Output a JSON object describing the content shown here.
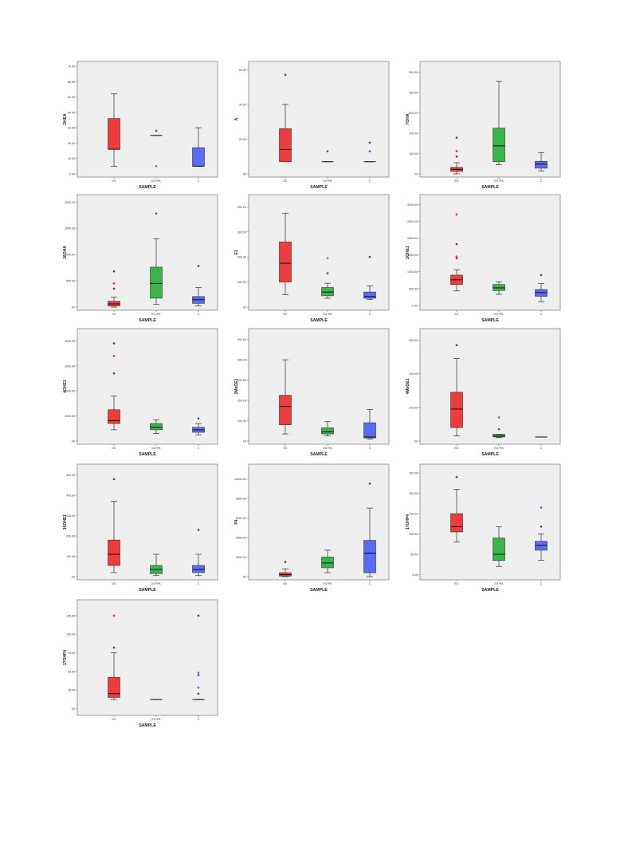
{
  "colors": {
    "group1": "#ee3b3b",
    "group2": "#39b54a",
    "group3": "#5a6cf5",
    "plot_bg": "#eeeeee",
    "whisker": "#333333"
  },
  "chart_data": [
    {
      "type": "box",
      "ylabel": "DHEA",
      "xlabel": "SAMPLE",
      "categories": [
        "EG",
        "EG+PA",
        "C"
      ],
      "yticks": [
        "0.00",
        "10.00",
        "20.00",
        "30.00",
        "40.00",
        "50.00",
        "60.00",
        "70.00"
      ],
      "ylim": [
        0,
        70
      ],
      "boxes": [
        {
          "min": 5,
          "q1": 16,
          "median": 16,
          "q3": 36,
          "max": 52,
          "outliers": []
        },
        {
          "min": 25,
          "q1": 25,
          "median": 25,
          "q3": 25,
          "max": 25,
          "outliers": [
            28,
            5
          ]
        },
        {
          "min": 5,
          "q1": 5,
          "median": 5,
          "q3": 17,
          "max": 30,
          "outliers": []
        }
      ]
    },
    {
      "type": "box",
      "ylabel": "A",
      "xlabel": "SAMPLE",
      "categories": [
        "EG",
        "EG+PA",
        "C"
      ],
      "yticks": [
        ".00",
        "20.00",
        "40.00",
        "60.00"
      ],
      "ylim": [
        0,
        62
      ],
      "boxes": [
        {
          "min": 7,
          "q1": 7,
          "median": 14,
          "q3": 26,
          "max": 40,
          "outliers": [
            57
          ]
        },
        {
          "min": 7,
          "q1": 7,
          "median": 7,
          "q3": 7,
          "max": 7,
          "outliers": [
            13
          ]
        },
        {
          "min": 7,
          "q1": 7,
          "median": 7,
          "q3": 7,
          "max": 7,
          "outliers": [
            18,
            13
          ]
        }
      ]
    },
    {
      "type": "box",
      "ylabel": "7OHA",
      "xlabel": "SAMPLE",
      "categories": [
        "EG",
        "EG+PA",
        "C"
      ],
      "yticks": [
        ".00",
        "100.00",
        "200.00",
        "300.00",
        "400.00",
        "500.00"
      ],
      "ylim": [
        0,
        530
      ],
      "boxes": [
        {
          "min": 0,
          "q1": 12,
          "median": 22,
          "q3": 32,
          "max": 55,
          "outliers": [
            85,
            112,
            178
          ]
        },
        {
          "min": 45,
          "q1": 60,
          "median": 138,
          "q3": 225,
          "max": 455,
          "outliers": []
        },
        {
          "min": 15,
          "q1": 28,
          "median": 48,
          "q3": 62,
          "max": 105,
          "outliers": []
        }
      ]
    },
    {
      "type": "box",
      "ylabel": "16OHA",
      "xlabel": "SAMPLE",
      "categories": [
        "EG",
        "EG+PA",
        "C"
      ],
      "yticks": [
        ".00",
        "500.00",
        "1000.00",
        "1500.00",
        "2000.00"
      ],
      "ylim": [
        0,
        2050
      ],
      "boxes": [
        {
          "min": 0,
          "q1": 20,
          "median": 60,
          "q3": 110,
          "max": 190,
          "outliers": [
            350,
            450,
            680
          ]
        },
        {
          "min": 50,
          "q1": 170,
          "median": 450,
          "q3": 760,
          "max": 1300,
          "outliers": [
            1780
          ]
        },
        {
          "min": 20,
          "q1": 70,
          "median": 140,
          "q3": 200,
          "max": 370,
          "outliers": [
            780
          ]
        }
      ]
    },
    {
      "type": "box",
      "ylabel": "E1",
      "xlabel": "SAMPLE",
      "categories": [
        "EG",
        "EG+PA",
        "C"
      ],
      "yticks": [
        ".00",
        "100.00",
        "200.00",
        "300.00",
        "400.00"
      ],
      "ylim": [
        0,
        430
      ],
      "boxes": [
        {
          "min": 50,
          "q1": 100,
          "median": 175,
          "q3": 260,
          "max": 375,
          "outliers": []
        },
        {
          "min": 35,
          "q1": 45,
          "median": 60,
          "q3": 78,
          "max": 95,
          "outliers": [
            135,
            195
          ]
        },
        {
          "min": 30,
          "q1": 35,
          "median": 42,
          "q3": 60,
          "max": 85,
          "outliers": [
            200
          ]
        }
      ]
    },
    {
      "type": "box",
      "ylabel": "2OHE1",
      "xlabel": "SAMPLE",
      "categories": [
        "EG",
        "EG+PA",
        "C"
      ],
      "yticks": [
        "0.00",
        "500.00",
        "1000.00",
        "1500.00",
        "2000.00",
        "2500.00",
        "3000.00"
      ],
      "ylim": [
        -50,
        3150
      ],
      "boxes": [
        {
          "min": 430,
          "q1": 620,
          "median": 760,
          "q3": 900,
          "max": 1060,
          "outliers": [
            1400,
            1450,
            1820,
            2700
          ]
        },
        {
          "min": 330,
          "q1": 440,
          "median": 520,
          "q3": 620,
          "max": 700,
          "outliers": []
        },
        {
          "min": 110,
          "q1": 270,
          "median": 380,
          "q3": 470,
          "max": 650,
          "outliers": [
            900
          ]
        }
      ]
    },
    {
      "type": "box",
      "ylabel": "4OHE1",
      "xlabel": "SAMPLE",
      "categories": [
        "EG",
        "EG+PA",
        "C"
      ],
      "yticks": [
        ".00",
        "1000.00",
        "2000.00",
        "3000.00",
        "4000.00"
      ],
      "ylim": [
        0,
        4300
      ],
      "boxes": [
        {
          "min": 450,
          "q1": 700,
          "median": 820,
          "q3": 1250,
          "max": 1800,
          "outliers": [
            2700,
            3400,
            3900
          ]
        },
        {
          "min": 300,
          "q1": 450,
          "median": 550,
          "q3": 700,
          "max": 850,
          "outliers": []
        },
        {
          "min": 250,
          "q1": 350,
          "median": 450,
          "q3": 550,
          "max": 700,
          "outliers": [
            900
          ]
        }
      ]
    },
    {
      "type": "box",
      "ylabel": "2MeOE1",
      "xlabel": "SAMPLE",
      "categories": [
        "EG",
        "EG+PA",
        "C"
      ],
      "yticks": [
        ".00",
        "100.00",
        "200.00",
        "300.00",
        "400.00",
        "500.00"
      ],
      "ylim": [
        0,
        530
      ],
      "boxes": [
        {
          "min": 35,
          "q1": 80,
          "median": 170,
          "q3": 225,
          "max": 400,
          "outliers": []
        },
        {
          "min": 25,
          "q1": 35,
          "median": 45,
          "q3": 65,
          "max": 95,
          "outliers": []
        },
        {
          "min": 10,
          "q1": 15,
          "median": 20,
          "q3": 90,
          "max": 155,
          "outliers": []
        }
      ]
    },
    {
      "type": "box",
      "ylabel": "4MeOE1",
      "xlabel": "SAMPLE",
      "categories": [
        "EG",
        "EG+PA",
        "C"
      ],
      "yticks": [
        ".00",
        "100.00",
        "200.00",
        "300.00"
      ],
      "ylim": [
        0,
        320
      ],
      "boxes": [
        {
          "min": 15,
          "q1": 40,
          "median": 95,
          "q3": 145,
          "max": 245,
          "outliers": [
            285
          ]
        },
        {
          "min": 10,
          "q1": 12,
          "median": 15,
          "q3": 20,
          "max": 20,
          "outliers": [
            35,
            70
          ]
        },
        {
          "min": 12,
          "q1": 12,
          "median": 12,
          "q3": 12,
          "max": 12,
          "outliers": []
        }
      ]
    },
    {
      "type": "box",
      "ylabel": "16OHE1",
      "xlabel": "SAMPLE",
      "categories": [
        "EG",
        "EG+PA",
        "C"
      ],
      "yticks": [
        ".00",
        "100.00",
        "200.00",
        "300.00",
        "400.00",
        "500.00"
      ],
      "ylim": [
        0,
        530
      ],
      "boxes": [
        {
          "min": 20,
          "q1": 55,
          "median": 110,
          "q3": 180,
          "max": 370,
          "outliers": [
            480
          ]
        },
        {
          "min": 5,
          "q1": 15,
          "median": 35,
          "q3": 55,
          "max": 110,
          "outliers": []
        },
        {
          "min": 5,
          "q1": 20,
          "median": 35,
          "q3": 55,
          "max": 110,
          "outliers": [
            230
          ]
        }
      ]
    },
    {
      "type": "box",
      "ylabel": "P4",
      "xlabel": "SAMPLE",
      "categories": [
        "EG",
        "EG+PA",
        "C"
      ],
      "yticks": [
        ".00",
        "2000.00",
        "4000.00",
        "6000.00",
        "8000.00",
        "10000.00"
      ],
      "ylim": [
        0,
        11000
      ],
      "boxes": [
        {
          "min": 0,
          "q1": 50,
          "median": 200,
          "q3": 400,
          "max": 800,
          "outliers": [
            1500
          ]
        },
        {
          "min": 400,
          "q1": 900,
          "median": 1400,
          "q3": 2000,
          "max": 2700,
          "outliers": []
        },
        {
          "min": 0,
          "q1": 400,
          "median": 2400,
          "q3": 3700,
          "max": 7000,
          "outliers": [
            9500
          ]
        }
      ]
    },
    {
      "type": "box",
      "ylabel": "17OHP4",
      "xlabel": "SAMPLE",
      "categories": [
        "EG",
        "EG+PA",
        "C"
      ],
      "yticks": [
        "0.00",
        "50.00",
        "100.00",
        "150.00",
        "200.00",
        "250.00"
      ],
      "ylim": [
        -5,
        260
      ],
      "boxes": [
        {
          "min": 80,
          "q1": 105,
          "median": 118,
          "q3": 150,
          "max": 210,
          "outliers": [
            240
          ]
        },
        {
          "min": 20,
          "q1": 35,
          "median": 50,
          "q3": 90,
          "max": 118,
          "outliers": []
        },
        {
          "min": 35,
          "q1": 60,
          "median": 72,
          "q3": 82,
          "max": 100,
          "outliers": [
            118,
            165
          ]
        }
      ]
    },
    {
      "type": "box",
      "ylabel": "17OHP4",
      "xlabel": "SAMPLE",
      "categories": [
        "EG",
        "EG+PA",
        "C"
      ],
      "yticks": [
        ".00",
        "25.00",
        "50.00",
        "75.00",
        "100.00",
        "125.00"
      ],
      "ylim": [
        -5,
        140
      ],
      "boxes": [
        {
          "min": 12,
          "q1": 15,
          "median": 20,
          "q3": 42,
          "max": 75,
          "outliers": [
            82,
            125
          ]
        },
        {
          "min": 12,
          "q1": 12,
          "median": 12,
          "q3": 12,
          "max": 12,
          "outliers": []
        },
        {
          "min": 12,
          "q1": 12,
          "median": 12,
          "q3": 12,
          "max": 12,
          "outliers": [
            20,
            28,
            45,
            48,
            125
          ]
        }
      ]
    }
  ]
}
